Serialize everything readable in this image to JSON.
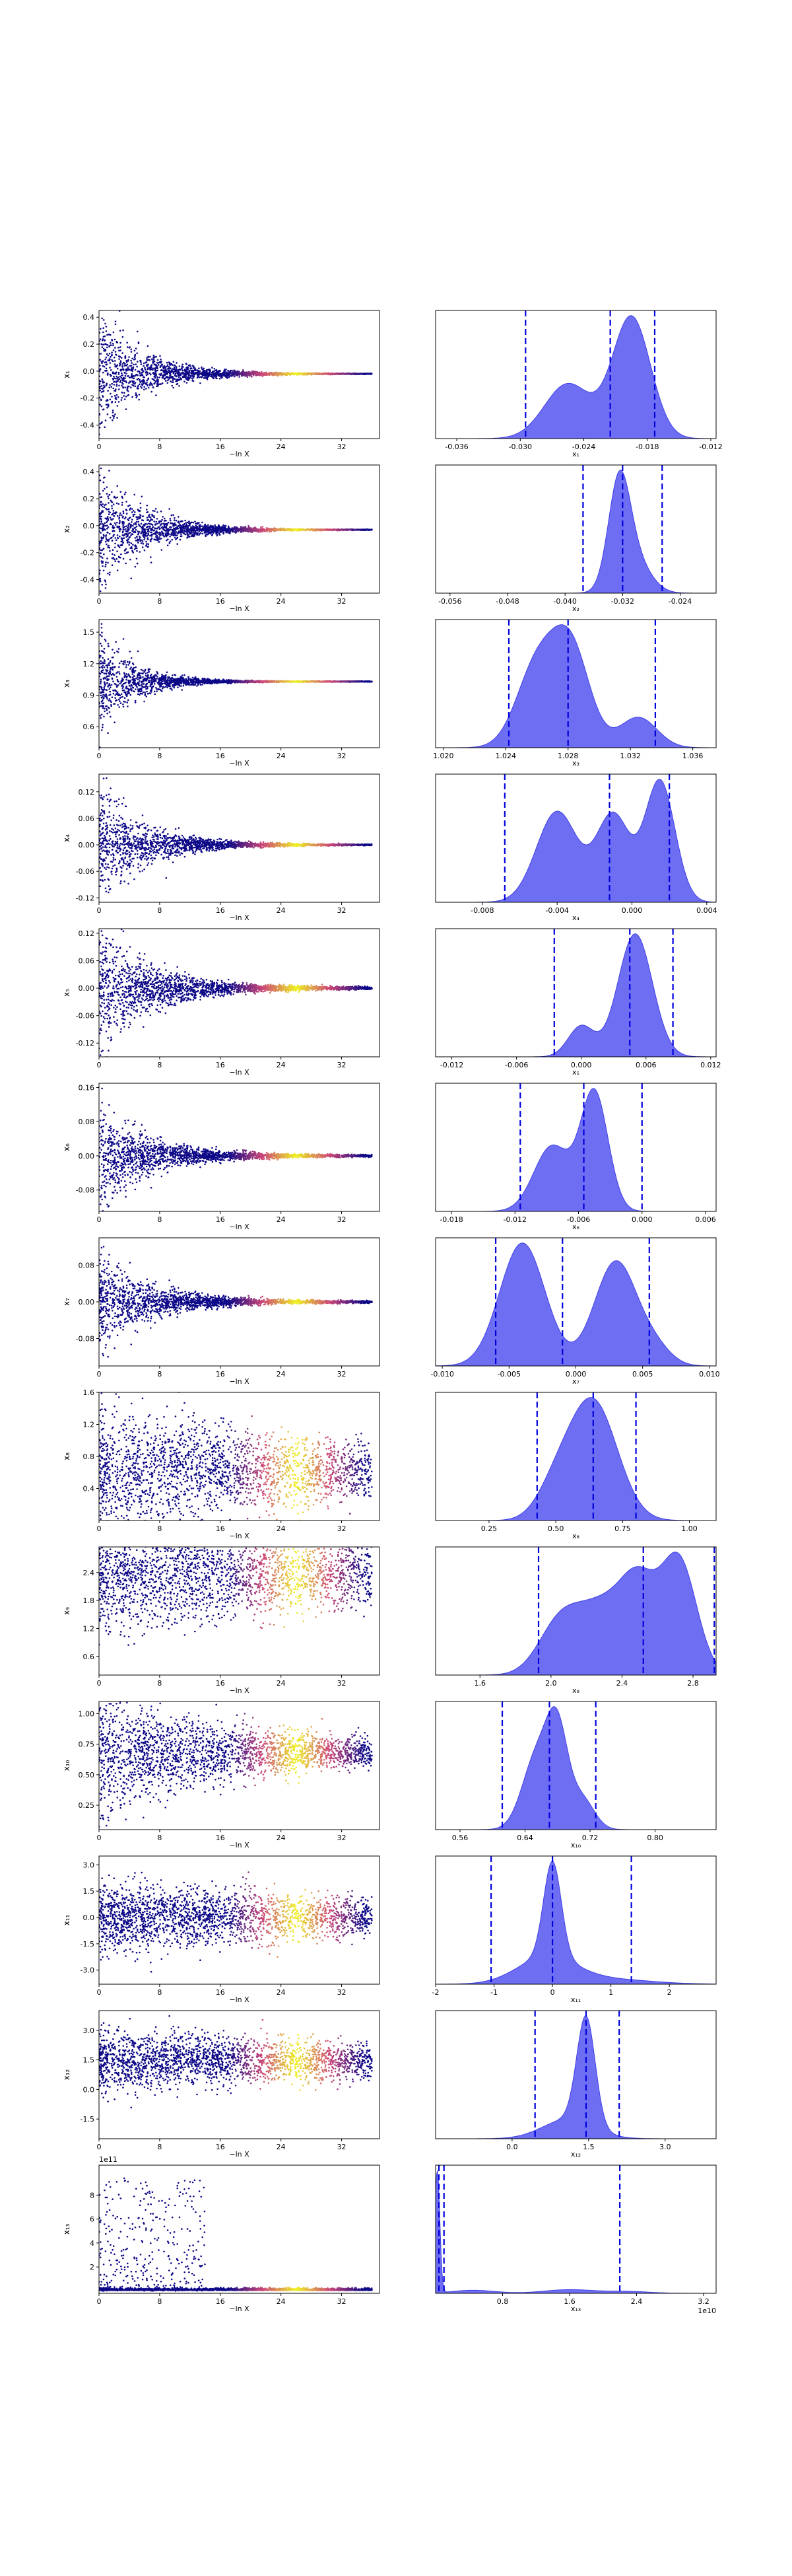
{
  "colors": {
    "trace_low": "#0d0887",
    "trace_mid": "#cc4778",
    "trace_high": "#f0f921",
    "kde_fill": "#6666f2",
    "kde_line": "#4040e6",
    "quantile_line": "#0000dd",
    "axis": "#000000"
  },
  "chart_data": [
    {
      "type": "scatter",
      "panel": "trace",
      "row": 1,
      "xlabel": "−ln X",
      "ylabel": "x₁",
      "xlim": [
        0,
        37
      ],
      "ylim": [
        -0.5,
        0.45
      ],
      "xticks": [
        "0",
        "8",
        "16",
        "24",
        "32"
      ],
      "yticks": [
        "-0.4",
        "-0.2",
        "0.0",
        "0.2",
        "0.4"
      ],
      "ytick_values": [
        -0.4,
        -0.2,
        0,
        0.2,
        0.4
      ],
      "trend": {
        "center": -0.02,
        "initial_spread": 0.45,
        "decay_scale": 5.5,
        "settle_spread": 0.002
      }
    },
    {
      "type": "area",
      "panel": "posterior",
      "row": 1,
      "xlabel": "x₁",
      "xlim": [
        -0.038,
        -0.0115
      ],
      "xticks": [
        "-0.036",
        "-0.030",
        "-0.024",
        "-0.018",
        "-0.012"
      ],
      "xtick_values": [
        -0.036,
        -0.03,
        -0.024,
        -0.018,
        -0.012
      ],
      "quantiles": [
        -0.0295,
        -0.0215,
        -0.0173
      ],
      "components": [
        {
          "mu": -0.0255,
          "sigma": 0.0022,
          "weight": 0.45
        },
        {
          "mu": -0.0195,
          "sigma": 0.0018,
          "weight": 1.0
        }
      ]
    },
    {
      "type": "scatter",
      "panel": "trace",
      "row": 2,
      "xlabel": "−ln X",
      "ylabel": "x₂",
      "xlim": [
        0,
        37
      ],
      "ylim": [
        -0.5,
        0.45
      ],
      "xticks": [
        "0",
        "8",
        "16",
        "24",
        "32"
      ],
      "yticks": [
        "-0.4",
        "-0.2",
        "0.0",
        "0.2",
        "0.4"
      ],
      "ytick_values": [
        -0.4,
        -0.2,
        0,
        0.2,
        0.4
      ],
      "trend": {
        "center": -0.03,
        "initial_spread": 0.45,
        "decay_scale": 5.5,
        "settle_spread": 0.002
      }
    },
    {
      "type": "area",
      "panel": "posterior",
      "row": 2,
      "xlabel": "x₂",
      "xlim": [
        -0.058,
        -0.019
      ],
      "xticks": [
        "-0.056",
        "-0.048",
        "-0.040",
        "-0.032",
        "-0.024"
      ],
      "xtick_values": [
        -0.056,
        -0.048,
        -0.04,
        -0.032,
        -0.024
      ],
      "quantiles": [
        -0.0375,
        -0.032,
        -0.0265
      ],
      "components": [
        {
          "mu": -0.0325,
          "sigma": 0.0015,
          "weight": 1.0
        },
        {
          "mu": -0.0305,
          "sigma": 0.0022,
          "weight": 0.35
        }
      ]
    },
    {
      "type": "scatter",
      "panel": "trace",
      "row": 3,
      "xlabel": "−ln X",
      "ylabel": "x₃",
      "xlim": [
        0,
        37
      ],
      "ylim": [
        0.4,
        1.62
      ],
      "xticks": [
        "0",
        "8",
        "16",
        "24",
        "32"
      ],
      "yticks": [
        "0.6",
        "0.9",
        "1.2",
        "1.5"
      ],
      "ytick_values": [
        0.6,
        0.9,
        1.2,
        1.5
      ],
      "trend": {
        "center": 1.03,
        "initial_spread": 0.45,
        "decay_scale": 4.5,
        "settle_spread": 0.003
      }
    },
    {
      "type": "area",
      "panel": "posterior",
      "row": 3,
      "xlabel": "x₃",
      "xlim": [
        1.0195,
        1.0375
      ],
      "xticks": [
        "1.020",
        "1.024",
        "1.028",
        "1.032",
        "1.036"
      ],
      "xtick_values": [
        1.02,
        1.024,
        1.028,
        1.032,
        1.036
      ],
      "quantiles": [
        1.0242,
        1.028,
        1.0336
      ],
      "components": [
        {
          "mu": 1.026,
          "sigma": 0.0013,
          "weight": 0.8
        },
        {
          "mu": 1.0282,
          "sigma": 0.0012,
          "weight": 0.95
        },
        {
          "mu": 1.0325,
          "sigma": 0.0012,
          "weight": 0.3
        }
      ]
    },
    {
      "type": "scatter",
      "panel": "trace",
      "row": 4,
      "xlabel": "−ln X",
      "ylabel": "x₄",
      "xlim": [
        0,
        37
      ],
      "ylim": [
        -0.13,
        0.16
      ],
      "xticks": [
        "0",
        "8",
        "16",
        "24",
        "32"
      ],
      "yticks": [
        "-0.12",
        "-0.06",
        "0.00",
        "0.06",
        "0.12"
      ],
      "ytick_values": [
        -0.12,
        -0.06,
        0,
        0.06,
        0.12
      ],
      "trend": {
        "center": 0.0,
        "initial_spread": 0.12,
        "decay_scale": 6.0,
        "settle_spread": 0.001
      }
    },
    {
      "type": "area",
      "panel": "posterior",
      "row": 4,
      "xlabel": "x₄",
      "xlim": [
        -0.0105,
        0.0045
      ],
      "xticks": [
        "-0.008",
        "-0.004",
        "0.000",
        "0.004"
      ],
      "xtick_values": [
        -0.008,
        -0.004,
        0,
        0.004
      ],
      "quantiles": [
        -0.0068,
        -0.0012,
        0.002
      ],
      "components": [
        {
          "mu": -0.004,
          "sigma": 0.0011,
          "weight": 0.75
        },
        {
          "mu": -0.001,
          "sigma": 0.0009,
          "weight": 0.72
        },
        {
          "mu": 0.0015,
          "sigma": 0.0008,
          "weight": 1.0
        }
      ]
    },
    {
      "type": "scatter",
      "panel": "trace",
      "row": 5,
      "xlabel": "−ln X",
      "ylabel": "x₅",
      "xlim": [
        0,
        37
      ],
      "ylim": [
        -0.15,
        0.13
      ],
      "xticks": [
        "0",
        "8",
        "16",
        "24",
        "32"
      ],
      "yticks": [
        "-0.12",
        "-0.06",
        "0.00",
        "0.06",
        "0.12"
      ],
      "ytick_values": [
        -0.12,
        -0.06,
        0,
        0.06,
        0.12
      ],
      "trend": {
        "center": 0.0,
        "initial_spread": 0.12,
        "decay_scale": 7.0,
        "settle_spread": 0.002
      }
    },
    {
      "type": "area",
      "panel": "posterior",
      "row": 5,
      "xlabel": "x₅",
      "xlim": [
        -0.0135,
        0.0125
      ],
      "xticks": [
        "-0.012",
        "-0.006",
        "0.000",
        "0.006",
        "0.012"
      ],
      "xtick_values": [
        -0.012,
        -0.006,
        0,
        0.006,
        0.012
      ],
      "quantiles": [
        -0.0025,
        0.0045,
        0.0085
      ],
      "components": [
        {
          "mu": 0.0,
          "sigma": 0.0012,
          "weight": 0.25
        },
        {
          "mu": 0.005,
          "sigma": 0.0016,
          "weight": 1.0
        }
      ]
    },
    {
      "type": "scatter",
      "panel": "trace",
      "row": 6,
      "xlabel": "−ln X",
      "ylabel": "x₆",
      "xlim": [
        0,
        37
      ],
      "ylim": [
        -0.13,
        0.17
      ],
      "xticks": [
        "0",
        "8",
        "16",
        "24",
        "32"
      ],
      "yticks": [
        "-0.08",
        "0.00",
        "0.08",
        "0.16"
      ],
      "ytick_values": [
        -0.08,
        0,
        0.08,
        0.16
      ],
      "trend": {
        "center": 0.0,
        "initial_spread": 0.11,
        "decay_scale": 6.5,
        "settle_spread": 0.002
      }
    },
    {
      "type": "area",
      "panel": "posterior",
      "row": 6,
      "xlabel": "x₆",
      "xlim": [
        -0.0195,
        0.007
      ],
      "xticks": [
        "-0.018",
        "-0.012",
        "-0.006",
        "0.000",
        "0.006"
      ],
      "xtick_values": [
        -0.018,
        -0.012,
        -0.006,
        0,
        0.006
      ],
      "quantiles": [
        -0.0115,
        -0.0055,
        0.0
      ],
      "components": [
        {
          "mu": -0.0085,
          "sigma": 0.0017,
          "weight": 0.55
        },
        {
          "mu": -0.0045,
          "sigma": 0.0013,
          "weight": 1.0
        }
      ]
    },
    {
      "type": "scatter",
      "panel": "trace",
      "row": 7,
      "xlabel": "−ln X",
      "ylabel": "x₇",
      "xlim": [
        0,
        37
      ],
      "ylim": [
        -0.14,
        0.14
      ],
      "xticks": [
        "0",
        "8",
        "16",
        "24",
        "32"
      ],
      "yticks": [
        "-0.08",
        "0.00",
        "0.08"
      ],
      "ytick_values": [
        -0.08,
        0,
        0.08
      ],
      "trend": {
        "center": 0.0,
        "initial_spread": 0.1,
        "decay_scale": 6.5,
        "settle_spread": 0.002
      }
    },
    {
      "type": "area",
      "panel": "posterior",
      "row": 7,
      "xlabel": "x₇",
      "xlim": [
        -0.0105,
        0.0105
      ],
      "xticks": [
        "-0.010",
        "-0.005",
        "0.000",
        "0.005",
        "0.010"
      ],
      "xtick_values": [
        -0.01,
        -0.005,
        0,
        0.005,
        0.01
      ],
      "quantiles": [
        -0.006,
        -0.001,
        0.0055
      ],
      "components": [
        {
          "mu": -0.004,
          "sigma": 0.0017,
          "weight": 1.0
        },
        {
          "mu": 0.003,
          "sigma": 0.0016,
          "weight": 0.85
        },
        {
          "mu": 0.006,
          "sigma": 0.0012,
          "weight": 0.12
        }
      ]
    },
    {
      "type": "scatter",
      "panel": "trace",
      "row": 8,
      "xlabel": "−ln X",
      "ylabel": "x₈",
      "xlim": [
        0,
        37
      ],
      "ylim": [
        0.0,
        1.6
      ],
      "xticks": [
        "0",
        "8",
        "16",
        "24",
        "32"
      ],
      "yticks": [
        "0.4",
        "0.8",
        "1.2",
        "1.6"
      ],
      "ytick_values": [
        0.4,
        0.8,
        1.2,
        1.6
      ],
      "trend": {
        "center": 0.62,
        "initial_spread": 0.6,
        "decay_scale": 28.0,
        "settle_spread": 0.15
      }
    },
    {
      "type": "area",
      "panel": "posterior",
      "row": 8,
      "xlabel": "x₈",
      "xlim": [
        0.05,
        1.1
      ],
      "xticks": [
        "0.25",
        "0.50",
        "0.75",
        "1.00"
      ],
      "xtick_values": [
        0.25,
        0.5,
        0.75,
        1.0
      ],
      "quantiles": [
        0.43,
        0.64,
        0.8
      ],
      "components": [
        {
          "mu": 0.64,
          "sigma": 0.09,
          "weight": 1.0
        },
        {
          "mu": 0.5,
          "sigma": 0.07,
          "weight": 0.25
        }
      ]
    },
    {
      "type": "scatter",
      "panel": "trace",
      "row": 9,
      "xlabel": "−ln X",
      "ylabel": "x₉",
      "xlim": [
        0,
        37
      ],
      "ylim": [
        0.2,
        2.95
      ],
      "xticks": [
        "0",
        "8",
        "16",
        "24",
        "32"
      ],
      "yticks": [
        "0.6",
        "1.2",
        "1.8",
        "2.4"
      ],
      "ytick_values": [
        0.6,
        1.2,
        1.8,
        2.4
      ],
      "trend": {
        "center": 2.35,
        "initial_spread": 0.9,
        "decay_scale": 30.0,
        "settle_spread": 0.3
      }
    },
    {
      "type": "area",
      "panel": "posterior",
      "row": 9,
      "xlabel": "x₉",
      "xlim": [
        1.35,
        2.93
      ],
      "xticks": [
        "1.6",
        "2.0",
        "2.4",
        "2.8"
      ],
      "xtick_values": [
        1.6,
        2.0,
        2.4,
        2.8
      ],
      "quantiles": [
        1.93,
        2.52,
        2.92
      ],
      "components": [
        {
          "mu": 2.05,
          "sigma": 0.12,
          "weight": 0.42
        },
        {
          "mu": 2.3,
          "sigma": 0.14,
          "weight": 0.55
        },
        {
          "mu": 2.5,
          "sigma": 0.1,
          "weight": 0.62
        },
        {
          "mu": 2.72,
          "sigma": 0.1,
          "weight": 0.95
        }
      ]
    },
    {
      "type": "scatter",
      "panel": "trace",
      "row": 10,
      "xlabel": "−ln X",
      "ylabel": "x₁₀",
      "xlim": [
        0,
        37
      ],
      "ylim": [
        0.05,
        1.1
      ],
      "xticks": [
        "0",
        "8",
        "16",
        "24",
        "32"
      ],
      "yticks": [
        "0.25",
        "0.50",
        "0.75",
        "1.00"
      ],
      "ytick_values": [
        0.25,
        0.5,
        0.75,
        1.0
      ],
      "trend": {
        "center": 0.68,
        "initial_spread": 0.4,
        "decay_scale": 20.0,
        "settle_spread": 0.04
      }
    },
    {
      "type": "area",
      "panel": "posterior",
      "row": 10,
      "xlabel": "x₁₀",
      "xlim": [
        0.53,
        0.875
      ],
      "xticks": [
        "0.56",
        "0.64",
        "0.72",
        "0.80"
      ],
      "xtick_values": [
        0.56,
        0.64,
        0.72,
        0.8
      ],
      "quantiles": [
        0.612,
        0.67,
        0.727
      ],
      "components": [
        {
          "mu": 0.655,
          "sigma": 0.018,
          "weight": 0.85
        },
        {
          "mu": 0.68,
          "sigma": 0.013,
          "weight": 1.0
        },
        {
          "mu": 0.71,
          "sigma": 0.015,
          "weight": 0.35
        }
      ]
    },
    {
      "type": "scatter",
      "panel": "trace",
      "row": 11,
      "xlabel": "−ln X",
      "ylabel": "x₁₁",
      "xlim": [
        0,
        37
      ],
      "ylim": [
        -3.8,
        3.5
      ],
      "xticks": [
        "0",
        "8",
        "16",
        "24",
        "32"
      ],
      "yticks": [
        "-3.0",
        "-1.5",
        "0.0",
        "1.5",
        "3.0"
      ],
      "ytick_values": [
        -3,
        -1.5,
        0,
        1.5,
        3
      ],
      "trend": {
        "center": 0.0,
        "initial_spread": 1.5,
        "decay_scale": 40.0,
        "settle_spread": 0.4
      }
    },
    {
      "type": "area",
      "panel": "posterior",
      "row": 11,
      "xlabel": "x₁₁",
      "xlim": [
        -2.0,
        2.8
      ],
      "xticks": [
        "-2",
        "-1",
        "0",
        "1",
        "2"
      ],
      "xtick_values": [
        -2,
        -1,
        0,
        1,
        2
      ],
      "quantiles": [
        -1.05,
        0.0,
        1.35
      ],
      "components": [
        {
          "mu": 0.0,
          "sigma": 0.15,
          "weight": 1.0
        },
        {
          "mu": -0.1,
          "sigma": 0.5,
          "weight": 0.28
        },
        {
          "mu": 1.0,
          "sigma": 0.7,
          "weight": 0.05
        }
      ]
    },
    {
      "type": "scatter",
      "panel": "trace",
      "row": 12,
      "xlabel": "−ln X",
      "ylabel": "x₁₂",
      "xlim": [
        0,
        37
      ],
      "ylim": [
        -2.5,
        4.0
      ],
      "xticks": [
        "0",
        "8",
        "16",
        "24",
        "32"
      ],
      "yticks": [
        "-1.5",
        "0.0",
        "1.5",
        "3.0"
      ],
      "ytick_values": [
        -1.5,
        0,
        1.5,
        3
      ],
      "trend": {
        "center": 1.45,
        "initial_spread": 1.2,
        "decay_scale": 40.0,
        "settle_spread": 0.3
      }
    },
    {
      "type": "area",
      "panel": "posterior",
      "row": 12,
      "xlabel": "x₁₂",
      "xlim": [
        -1.5,
        4.0
      ],
      "xticks": [
        "0.0",
        "1.5",
        "3.0"
      ],
      "xtick_values": [
        0,
        1.5,
        3
      ],
      "quantiles": [
        0.45,
        1.45,
        2.1
      ],
      "components": [
        {
          "mu": 1.45,
          "sigma": 0.18,
          "weight": 1.0
        },
        {
          "mu": 1.1,
          "sigma": 0.5,
          "weight": 0.18
        }
      ]
    },
    {
      "type": "scatter",
      "panel": "trace",
      "row": 13,
      "xlabel": "−ln X",
      "ylabel": "x₁₃",
      "yscale_label": "1e11",
      "xlim": [
        0,
        37
      ],
      "ylim": [
        -0.2,
        10.5
      ],
      "xticks": [
        "0",
        "8",
        "16",
        "24",
        "32"
      ],
      "yticks": [
        "2",
        "4",
        "6",
        "8"
      ],
      "ytick_values": [
        2,
        4,
        6,
        8
      ],
      "trend": {
        "center": 0.05,
        "initial_spread": 0.0,
        "decay_scale": 6.0,
        "settle_spread": 0.0
      }
    },
    {
      "type": "area",
      "panel": "posterior",
      "row": 13,
      "xlabel": "x₁₃",
      "xscale_label": "1e10",
      "xlim": [
        0.0,
        3.35
      ],
      "xticks": [
        "0.8",
        "1.6",
        "2.4",
        "3.2"
      ],
      "xtick_values": [
        0.8,
        1.6,
        2.4,
        3.2
      ],
      "quantiles": [
        0.04,
        0.1,
        2.2
      ],
      "components": [
        {
          "mu": 0.02,
          "sigma": 0.03,
          "weight": 1.0
        },
        {
          "mu": 0.45,
          "sigma": 0.25,
          "weight": 0.025
        },
        {
          "mu": 1.6,
          "sigma": 0.3,
          "weight": 0.03
        },
        {
          "mu": 2.3,
          "sigma": 0.25,
          "weight": 0.015
        }
      ]
    }
  ]
}
